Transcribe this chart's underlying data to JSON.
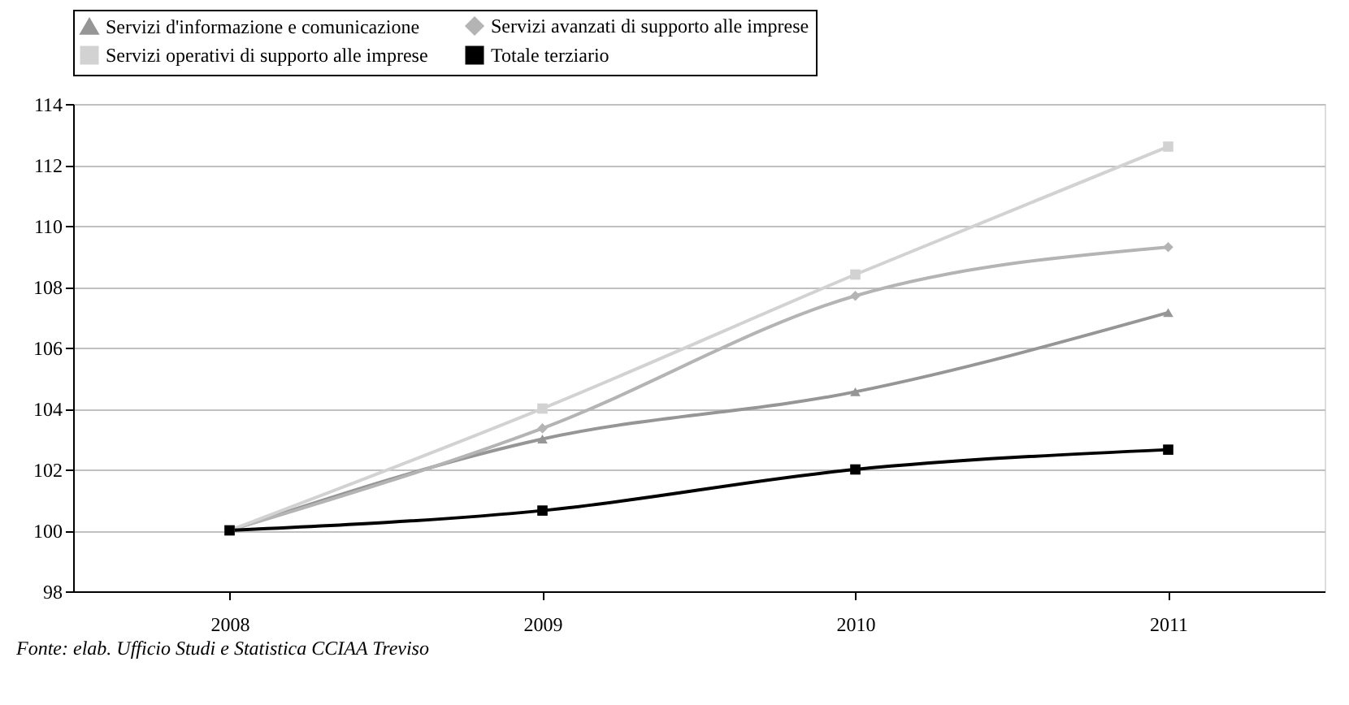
{
  "chart_data": {
    "type": "line",
    "categories": [
      "2008",
      "2009",
      "2010",
      "2011"
    ],
    "series": [
      {
        "name": "Servizi d'informazione e comunicazione",
        "color": "#969696",
        "marker": "triangle",
        "values": [
          100,
          103.0,
          104.55,
          107.15
        ]
      },
      {
        "name": "Servizi avanzati di supporto alle imprese",
        "color": "#b4b4b4",
        "marker": "diamond",
        "values": [
          100,
          103.35,
          107.7,
          109.3
        ]
      },
      {
        "name": "Servizi operativi di supporto alle imprese",
        "color": "#d2d2d2",
        "marker": "square",
        "values": [
          100,
          104.0,
          108.4,
          112.6
        ]
      },
      {
        "name": "Totale terziario",
        "color": "#000000",
        "marker": "square",
        "values": [
          100,
          100.65,
          102.0,
          102.65
        ]
      }
    ],
    "ylim": [
      98,
      114
    ],
    "yticks": [
      98,
      100,
      102,
      104,
      106,
      108,
      110,
      112,
      114
    ],
    "grid": "y",
    "legend": "top",
    "annotations": [
      "Fonte: elab. Ufficio Studi e Statistica CCIAA Treviso"
    ]
  }
}
